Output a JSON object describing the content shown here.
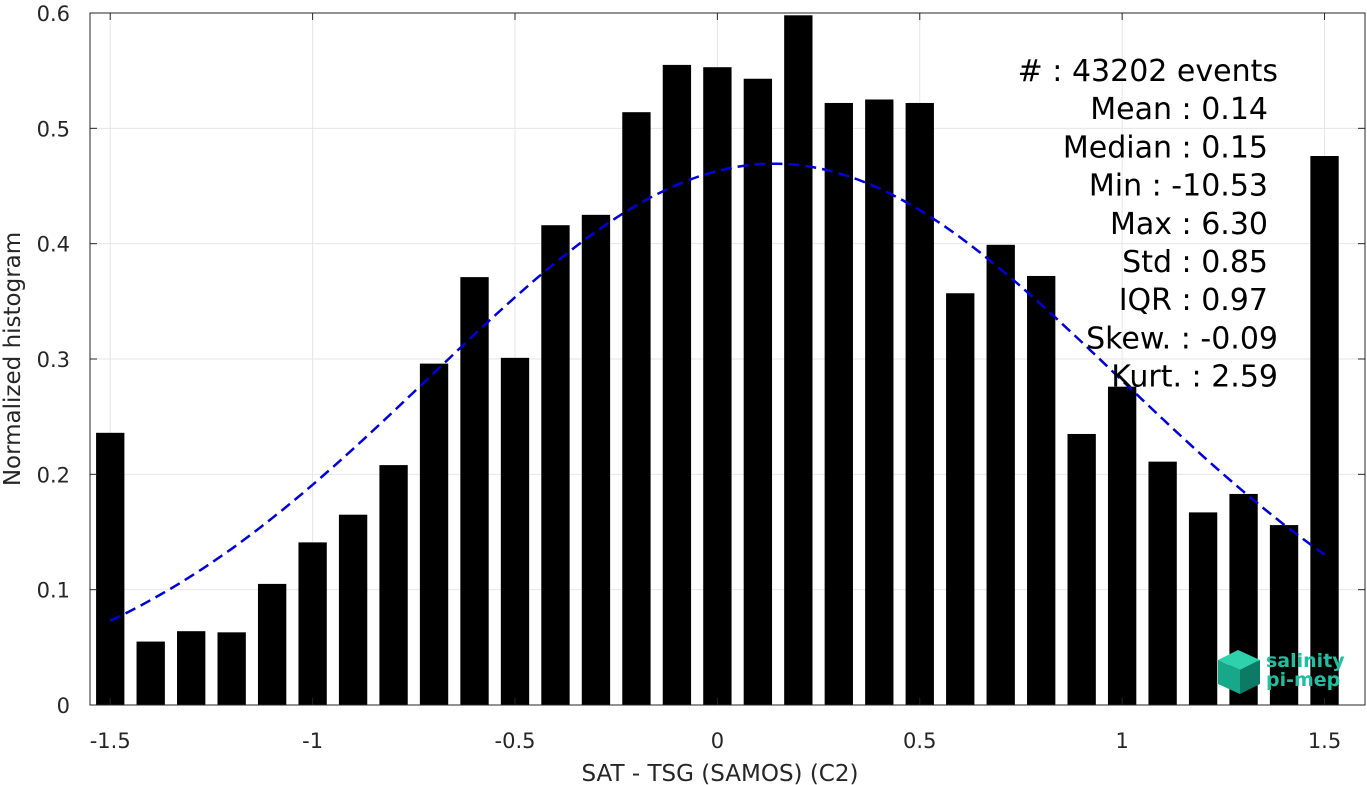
{
  "chart_data": {
    "type": "bar",
    "title": "",
    "xlabel": "SAT - TSG (SAMOS) (C2)",
    "ylabel": "Normalized histogram",
    "xlim": [
      -1.55,
      1.6
    ],
    "ylim": [
      0,
      0.6
    ],
    "xticks": [
      -1.5,
      -1,
      -0.5,
      0,
      0.5,
      1,
      1.5
    ],
    "xtick_labels": [
      "-1.5",
      "-1",
      "-0.5",
      "0",
      "0.5",
      "1",
      "1.5"
    ],
    "yticks": [
      0,
      0.1,
      0.2,
      0.3,
      0.4,
      0.5,
      0.6
    ],
    "ytick_labels": [
      "0",
      "0.1",
      "0.2",
      "0.3",
      "0.4",
      "0.5",
      "0.6"
    ],
    "grid": true,
    "bar_color": "#000000",
    "bin_width": 0.1,
    "bins": [
      -1.5,
      -1.4,
      -1.3,
      -1.2,
      -1.1,
      -1.0,
      -0.9,
      -0.8,
      -0.7,
      -0.6,
      -0.5,
      -0.4,
      -0.3,
      -0.2,
      -0.1,
      0.0,
      0.1,
      0.2,
      0.3,
      0.4,
      0.5,
      0.6,
      0.7,
      0.8,
      0.9,
      1.0,
      1.1,
      1.2,
      1.3,
      1.4,
      1.5
    ],
    "values": [
      0.236,
      0.055,
      0.064,
      0.063,
      0.105,
      0.141,
      0.165,
      0.208,
      0.296,
      0.371,
      0.301,
      0.416,
      0.425,
      0.514,
      0.555,
      0.553,
      0.543,
      0.598,
      0.522,
      0.525,
      0.522,
      0.357,
      0.399,
      0.372,
      0.235,
      0.276,
      0.211,
      0.167,
      0.183,
      0.156,
      0.476
    ],
    "fit_curve": {
      "type": "gaussian",
      "mean": 0.14,
      "std": 0.85,
      "x_range": [
        -1.5,
        1.5
      ],
      "color": "#0000dd",
      "style": "dashed"
    },
    "annotations": [
      "#  : 43202 events",
      "Mean : 0.14",
      "Median : 0.15",
      "Min : -10.53",
      "Max : 6.30",
      "Std : 0.85",
      "IQR : 0.97",
      "Skew. : -0.09",
      "Kurt. : 2.59"
    ]
  },
  "logo": {
    "line1": "salinity",
    "line2": "pi-mep",
    "color": "#1fbf9f",
    "icon": "cube-logo-icon"
  }
}
